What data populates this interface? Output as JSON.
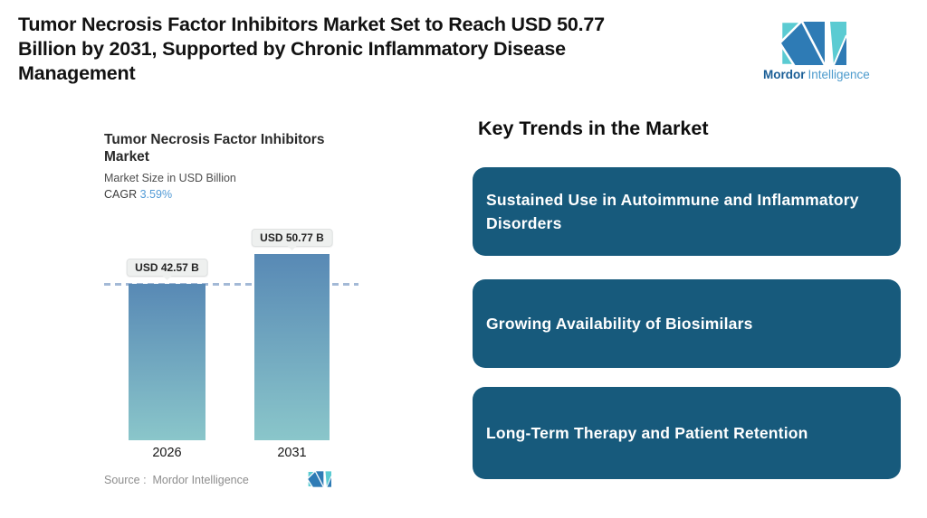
{
  "header": {
    "title_lines": [
      "Tumor Necrosis Factor Inhibitors Market Set to Reach USD 50.77",
      "Billion by 2031, Supported by Chronic Inflammatory Disease",
      "Management"
    ]
  },
  "brand": {
    "name_primary": "Mordor",
    "name_secondary": "Intelligence"
  },
  "chart": {
    "title": "Tumor Necrosis Factor Inhibitors Market",
    "subtitle": "Market Size in USD Billion",
    "cagr_label": "CAGR",
    "cagr_value": "3.59%",
    "source_label": "Source :  Mordor Intelligence"
  },
  "chart_data": {
    "type": "bar",
    "title": "Tumor Necrosis Factor Inhibitors Market",
    "ylabel": "Market Size in USD Billion",
    "categories": [
      "2026",
      "2031"
    ],
    "values": [
      42.57,
      50.77
    ],
    "value_labels": [
      "USD 42.57 B",
      "USD 50.77 B"
    ],
    "cagr_percent": 3.59,
    "reference_line_value": 42.57,
    "ylim": [
      0,
      50.77
    ],
    "grid": false,
    "legend": false
  },
  "trends": {
    "heading": "Key Trends in the Market",
    "items": [
      {
        "label": "Sustained Use in Autoimmune and Inflammatory Disorders"
      },
      {
        "label": "Growing Availability of Biosimilars"
      },
      {
        "label": "Long-Term Therapy and Patient Retention"
      }
    ]
  },
  "colors": {
    "trend_box": "#175a7c",
    "bar_gradient_top": "#5889b5",
    "bar_gradient_bottom": "#8ac6ca",
    "reference_line": "#a3b9d6",
    "cagr_value_text": "#539bd6",
    "logo_blue": "#2e7bb5",
    "logo_teal": "#5bcbd2"
  }
}
